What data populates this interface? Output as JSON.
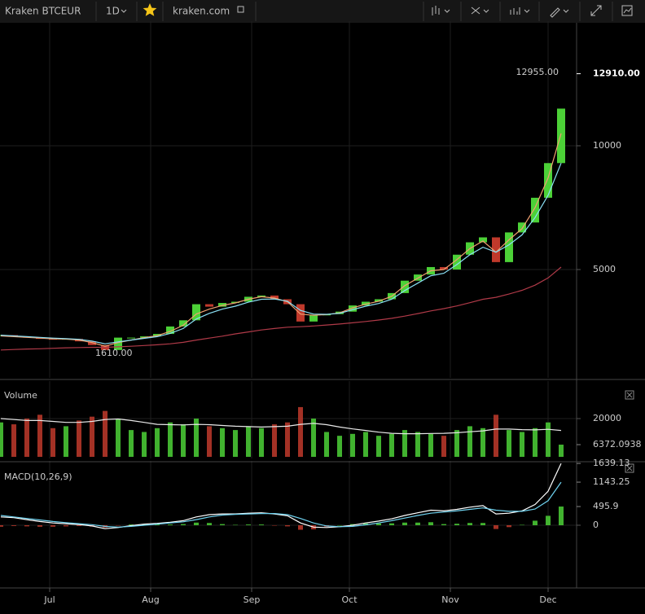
{
  "toolbar": {
    "symbol": "Kraken BTCEUR",
    "interval": "1D",
    "source": "kraken.com"
  },
  "chart_data": [
    {
      "type": "candlestick",
      "grid": true,
      "x": [
        -15,
        -11,
        -7,
        -3,
        1,
        5,
        9,
        13,
        17,
        21,
        25,
        29,
        33,
        37,
        41,
        45,
        49,
        53,
        57,
        61,
        65,
        69,
        73,
        77,
        81,
        85,
        89,
        93,
        97,
        101,
        105,
        109,
        113,
        117,
        121,
        125,
        129,
        133,
        137,
        141,
        145,
        149,
        153,
        157
      ],
      "xlim": [
        -15.25,
        161.75
      ],
      "xticks": [
        {
          "value": 0,
          "label": "Jul"
        },
        {
          "value": 31,
          "label": "Aug"
        },
        {
          "value": 62,
          "label": "Sep"
        },
        {
          "value": 92,
          "label": "Oct"
        },
        {
          "value": 123,
          "label": "Nov"
        },
        {
          "value": 153,
          "label": "Dec"
        }
      ],
      "ylim": [
        691,
        14967
      ],
      "yticks": [
        5000,
        10000
      ],
      "up_color": "#4cd137",
      "down_color": "#c0392b",
      "series": [
        {
          "type": "candlestick",
          "values": [
            2350,
            2300,
            2250,
            2200,
            2180,
            2200,
            2100,
            1950,
            1750,
            2250,
            2250,
            2300,
            2400,
            2700,
            2950,
            3600,
            3500,
            3650,
            3700,
            3900,
            3950,
            3800,
            3600,
            2900,
            3150,
            3200,
            3300,
            3550,
            3700,
            3800,
            4050,
            4550,
            4800,
            5100,
            5000,
            5600,
            6100,
            6300,
            5300,
            6500,
            6900,
            7900,
            9300,
            11500
          ]
        },
        {
          "type": "line",
          "color": "#f0a070",
          "values": [
            2320,
            2290,
            2260,
            2230,
            2200,
            2190,
            2150,
            2050,
            1900,
            2050,
            2150,
            2250,
            2330,
            2500,
            2750,
            3200,
            3400,
            3550,
            3650,
            3800,
            3900,
            3850,
            3700,
            3200,
            3150,
            3180,
            3250,
            3450,
            3600,
            3720,
            3920,
            4350,
            4650,
            4950,
            5000,
            5400,
            5850,
            6150,
            5700,
            6200,
            6650,
            7500,
            8700,
            10500
          ]
        },
        {
          "type": "line",
          "color": "#8be0f5",
          "values": [
            2350,
            2320,
            2290,
            2260,
            2230,
            2210,
            2180,
            2110,
            2000,
            2080,
            2150,
            2220,
            2290,
            2420,
            2620,
            3000,
            3230,
            3400,
            3520,
            3680,
            3800,
            3810,
            3720,
            3350,
            3200,
            3190,
            3230,
            3380,
            3520,
            3630,
            3800,
            4150,
            4450,
            4750,
            4850,
            5200,
            5600,
            5900,
            5700,
            6000,
            6400,
            7100,
            8000,
            9300
          ]
        },
        {
          "type": "line",
          "color": "#b03a48",
          "values": [
            1750,
            1770,
            1790,
            1800,
            1820,
            1840,
            1850,
            1860,
            1860,
            1880,
            1900,
            1930,
            1960,
            2000,
            2060,
            2150,
            2230,
            2310,
            2400,
            2480,
            2560,
            2620,
            2670,
            2690,
            2720,
            2760,
            2800,
            2850,
            2900,
            2960,
            3030,
            3120,
            3220,
            3330,
            3420,
            3530,
            3660,
            3800,
            3880,
            4010,
            4160,
            4370,
            4660,
            5100
          ]
        }
      ],
      "annotations": [
        {
          "x": 157,
          "value": 12955,
          "label": "12955.00"
        },
        {
          "x": 17,
          "value": 1610,
          "label": "1610.00"
        }
      ],
      "last_price": {
        "value": 12910,
        "label": "12910.00"
      }
    },
    {
      "type": "bar",
      "title": "Volume",
      "grid": true,
      "ylim": [
        0,
        38740
      ],
      "yticks": [
        20000
      ],
      "up_color": "#4cd137",
      "down_color": "#c0392b",
      "series": [
        {
          "type": "bar",
          "values": [
            18000,
            17000,
            20000,
            22000,
            15000,
            16000,
            19000,
            21000,
            24000,
            20000,
            14000,
            13000,
            15000,
            18000,
            17000,
            20000,
            16000,
            15000,
            14000,
            16000,
            15000,
            17000,
            18000,
            26000,
            20000,
            13000,
            11000,
            12000,
            13000,
            11000,
            12000,
            14000,
            13000,
            12000,
            11000,
            14000,
            16000,
            15000,
            22000,
            14000,
            13000,
            15000,
            18000,
            6372.0938
          ]
        },
        {
          "type": "line",
          "color": "#e8e8e8",
          "values": [
            20000,
            19500,
            19000,
            19000,
            18500,
            18000,
            18000,
            18500,
            19500,
            19800,
            19000,
            18000,
            17000,
            16800,
            16700,
            17000,
            16800,
            16400,
            16000,
            15800,
            15600,
            15800,
            16000,
            17000,
            17500,
            16800,
            15600,
            14600,
            13800,
            12900,
            12300,
            12100,
            12100,
            12200,
            12300,
            12600,
            13100,
            13600,
            14500,
            14500,
            14200,
            14100,
            14400,
            13800
          ]
        }
      ]
    },
    {
      "type": "line",
      "title": "MACD(10,26,9)",
      "grid": true,
      "ylim": [
        -1620,
        1663
      ],
      "yticks": [
        0
      ],
      "up_color": "#4cd137",
      "down_color": "#c0392b",
      "series": [
        {
          "type": "bar",
          "values": [
            -40,
            -20,
            -30,
            -40,
            -40,
            -30,
            -20,
            -35,
            -60,
            -10,
            20,
            30,
            20,
            20,
            30,
            70,
            60,
            30,
            10,
            20,
            20,
            -10,
            -30,
            -120,
            -110,
            -40,
            0,
            30,
            50,
            50,
            50,
            70,
            70,
            80,
            30,
            40,
            60,
            60,
            -100,
            -50,
            10,
            120,
            250,
            495.9
          ]
        },
        {
          "type": "line",
          "color": "#ffffff",
          "values": [
            220,
            200,
            150,
            100,
            60,
            40,
            20,
            -20,
            -90,
            -60,
            -10,
            30,
            50,
            80,
            120,
            220,
            280,
            300,
            300,
            320,
            330,
            300,
            250,
            60,
            -50,
            -60,
            -40,
            0,
            60,
            110,
            170,
            260,
            330,
            400,
            380,
            420,
            480,
            520,
            300,
            320,
            380,
            550,
            900,
            1639.13
          ]
        },
        {
          "type": "line",
          "color": "#6fd3f0",
          "values": [
            260,
            220,
            180,
            140,
            100,
            70,
            40,
            15,
            -30,
            -50,
            -30,
            0,
            30,
            60,
            90,
            150,
            220,
            270,
            290,
            300,
            310,
            310,
            280,
            180,
            60,
            -20,
            -40,
            -30,
            10,
            60,
            120,
            190,
            260,
            320,
            350,
            380,
            420,
            460,
            400,
            370,
            370,
            430,
            650,
            1143.25
          ]
        }
      ]
    }
  ]
}
